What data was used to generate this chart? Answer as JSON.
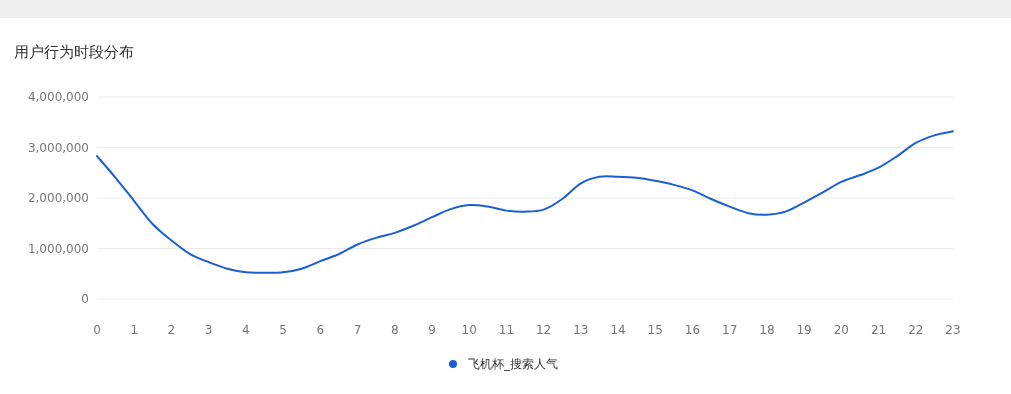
{
  "chart_data": {
    "type": "line",
    "title": "用户行为时段分布",
    "x": [
      0,
      0.5,
      1,
      1.5,
      2,
      2.5,
      3,
      3.5,
      4,
      4.5,
      5,
      5.5,
      6,
      6.5,
      7,
      7.5,
      8,
      8.5,
      9,
      9.5,
      10,
      10.5,
      11,
      11.5,
      12,
      12.5,
      13,
      13.5,
      14,
      14.5,
      15,
      15.5,
      16,
      16.5,
      17,
      17.5,
      18,
      18.5,
      19,
      19.5,
      20,
      20.5,
      21,
      21.5,
      22,
      22.5,
      23
    ],
    "series": [
      {
        "name": "飞机杯_搜索人气",
        "color": "#1c5fd4",
        "values": [
          2830000,
          2400000,
          1940000,
          1480000,
          1160000,
          890000,
          730000,
          600000,
          530000,
          520000,
          530000,
          600000,
          750000,
          890000,
          1080000,
          1210000,
          1310000,
          1450000,
          1620000,
          1780000,
          1860000,
          1830000,
          1750000,
          1730000,
          1770000,
          1980000,
          2290000,
          2420000,
          2420000,
          2400000,
          2340000,
          2260000,
          2150000,
          1980000,
          1830000,
          1700000,
          1670000,
          1730000,
          1910000,
          2110000,
          2320000,
          2450000,
          2600000,
          2830000,
          3090000,
          3240000,
          3320000
        ]
      }
    ],
    "xlim": [
      0,
      23
    ],
    "xticks": [
      0,
      1,
      2,
      3,
      4,
      5,
      6,
      7,
      8,
      9,
      10,
      11,
      12,
      13,
      14,
      15,
      16,
      17,
      18,
      19,
      20,
      21,
      22,
      23
    ],
    "ylim": [
      0,
      4000000
    ],
    "yticks": [
      {
        "value": 0,
        "label": "0"
      },
      {
        "value": 1000000,
        "label": "1,000,000"
      },
      {
        "value": 2000000,
        "label": "2,000,000"
      },
      {
        "value": 3000000,
        "label": "3,000,000"
      },
      {
        "value": 4000000,
        "label": "4,000,000"
      }
    ],
    "grid": "y",
    "legend": "bottom",
    "marker": "none",
    "line_style": "solid"
  }
}
